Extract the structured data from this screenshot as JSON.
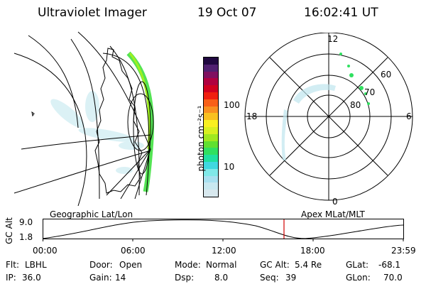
{
  "header": {
    "instrument": "Ultraviolet Imager",
    "date": "19 Oct 07",
    "time": "16:02:41 UT"
  },
  "colorbar": {
    "ticks": [
      "100",
      "10"
    ],
    "label": "photon cm⁻²s⁻¹",
    "colors": [
      "#d8e8ee",
      "#c8e8f0",
      "#a8e0f0",
      "#80e8e8",
      "#40d8e0",
      "#20e0a0",
      "#30e060",
      "#60e030",
      "#a0e820",
      "#d8f020",
      "#f8f020",
      "#f8c020",
      "#f89020",
      "#f86018",
      "#f02010",
      "#d00020",
      "#b00040",
      "#801060",
      "#502070",
      "#200840"
    ]
  },
  "polar": {
    "mlt_labels": {
      "top": "12",
      "left": "18",
      "right": "6",
      "bottom": "0"
    },
    "lat_labels": [
      "60",
      "70",
      "80"
    ]
  },
  "timeline": {
    "left_title": "Geographic Lat/Lon",
    "right_title": "Apex MLat/MLT",
    "y_axis_label": "GC Alt",
    "y_ticks": [
      "9.0",
      "1.8"
    ],
    "x_ticks": [
      "00:00",
      "06:00",
      "12:00",
      "18:00",
      "23:59"
    ]
  },
  "footer": {
    "row1": [
      {
        "label": "Flt:",
        "value": "LBHL"
      },
      {
        "label": "Door:",
        "value": "Open"
      },
      {
        "label": "Mode:",
        "value": "Normal"
      },
      {
        "label": "GC Alt:",
        "value": "5.4 Re"
      },
      {
        "label": "GLat:",
        "value": "-68.1"
      }
    ],
    "row2": [
      {
        "label": "IP:",
        "value": "36.0"
      },
      {
        "label": "Gain:",
        "value": "14"
      },
      {
        "label": "Dsp:",
        "value": "8.0"
      },
      {
        "label": "Seq:",
        "value": "39"
      },
      {
        "label": "GLon:",
        "value": "70.0"
      }
    ]
  }
}
